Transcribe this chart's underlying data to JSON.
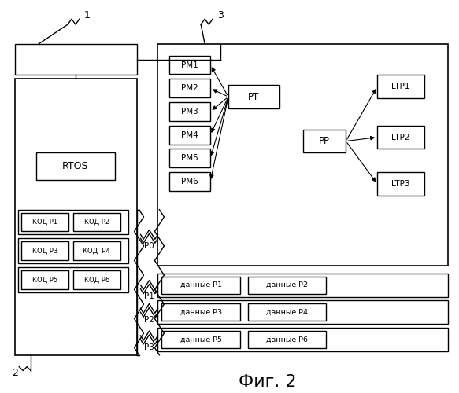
{
  "title": "Фиг. 2",
  "bg_color": "#ffffff",
  "label1": "1",
  "label2": "2",
  "label3": "3",
  "rtos_label": "RTOS",
  "kod_boxes": [
    {
      "label": "КОД Р1",
      "col": 0,
      "row": 0
    },
    {
      "label": "КОД Р2",
      "col": 1,
      "row": 0
    },
    {
      "label": "КОД Р3",
      "col": 0,
      "row": 1
    },
    {
      "label": "КОД  Р4",
      "col": 1,
      "row": 1
    },
    {
      "label": "КОД Р5",
      "col": 0,
      "row": 2
    },
    {
      "label": "КОД Р6",
      "col": 1,
      "row": 2
    }
  ],
  "pm_labels": [
    "PM1",
    "PM2",
    "PM3",
    "PM4",
    "PM5",
    "PM6"
  ],
  "pt_label": "PT",
  "pp_label": "PP",
  "ltp_labels": [
    "LTP1",
    "LTP2",
    "LTP3"
  ],
  "data_labels": [
    [
      "данные Р1",
      "данные Р2"
    ],
    [
      "данные Р3",
      "данные Р4"
    ],
    [
      "данные Р5",
      "данные Р6"
    ]
  ],
  "p_labels": [
    "P0",
    "P1",
    "P2",
    "P3"
  ]
}
